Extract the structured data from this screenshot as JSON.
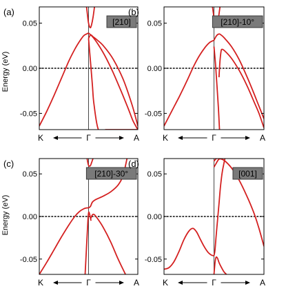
{
  "y_axis_label": "Energy (eV)",
  "chart_data": [
    {
      "type": "line",
      "panel_label": "(a)",
      "tag": "[210]",
      "x_ticks": [
        "K",
        "Γ",
        "A"
      ],
      "yticks": [
        "0.05",
        "0.00",
        "-0.05"
      ],
      "ylim": [
        -0.068,
        0.068
      ],
      "xlim": [
        -1,
        1
      ],
      "line_color": "#d42020",
      "series": [
        {
          "x": [
            -1.0,
            -0.85,
            -0.7,
            -0.55,
            -0.4,
            -0.28,
            -0.18,
            -0.1,
            -0.04,
            0.0
          ],
          "y": [
            -0.064,
            -0.048,
            -0.03,
            -0.011,
            0.008,
            0.021,
            0.03,
            0.036,
            0.038,
            0.039
          ]
        },
        {
          "x": [
            0.0,
            0.08,
            0.2,
            0.35,
            0.5,
            0.65,
            0.8,
            0.9,
            1.0
          ],
          "y": [
            0.039,
            0.035,
            0.026,
            0.012,
            -0.005,
            -0.024,
            -0.044,
            -0.058,
            -0.068
          ]
        },
        {
          "x": [
            0.0,
            0.02,
            0.05,
            0.08,
            0.11,
            0.2,
            0.35,
            0.5,
            0.65,
            0.8,
            0.9,
            1.0
          ],
          "y": [
            0.033,
            0.02,
            0.0,
            -0.02,
            -0.04,
            -0.068,
            -0.068,
            -0.068,
            -0.068,
            -0.068,
            -0.068,
            -0.068
          ]
        },
        {
          "x": [
            0.0,
            0.04,
            0.09,
            0.16,
            0.3,
            0.5,
            0.7,
            0.88,
            1.0
          ],
          "y": [
            0.033,
            0.037,
            0.035,
            0.032,
            0.025,
            0.01,
            -0.012,
            -0.04,
            -0.064
          ]
        },
        {
          "x": [
            -0.04,
            -0.02,
            0.0,
            0.02,
            0.04,
            0.06,
            0.09,
            0.12
          ],
          "y": [
            0.068,
            0.058,
            0.05,
            0.046,
            0.045,
            0.048,
            0.056,
            0.068
          ]
        }
      ]
    },
    {
      "type": "line",
      "panel_label": "(b)",
      "tag": "[210]-10°",
      "x_ticks": [
        "K",
        "Γ",
        "A"
      ],
      "yticks": [
        "0.05",
        "0.00",
        "-0.05"
      ],
      "ylim": [
        -0.068,
        0.068
      ],
      "xlim": [
        -1,
        1
      ],
      "line_color": "#d42020",
      "series": [
        {
          "x": [
            -1.0,
            -0.85,
            -0.7,
            -0.55,
            -0.4,
            -0.28,
            -0.18,
            -0.1,
            -0.04,
            0.0
          ],
          "y": [
            -0.064,
            -0.048,
            -0.032,
            -0.015,
            0.003,
            0.015,
            0.023,
            0.028,
            0.03,
            0.031
          ]
        },
        {
          "x": [
            0.0,
            0.05,
            0.1,
            0.14,
            0.2,
            0.35,
            0.5,
            0.65,
            0.8,
            0.9,
            1.0
          ],
          "y": [
            0.031,
            0.036,
            0.038,
            0.037,
            0.034,
            0.024,
            0.01,
            -0.008,
            -0.028,
            -0.042,
            -0.056
          ]
        },
        {
          "x": [
            0.0,
            0.03,
            0.06,
            0.09,
            0.11
          ],
          "y": [
            0.024,
            0.005,
            -0.02,
            -0.045,
            -0.068
          ]
        },
        {
          "x": [
            0.1,
            0.12,
            0.14,
            0.16,
            0.22,
            0.35,
            0.5,
            0.65,
            0.8,
            0.9,
            1.0
          ],
          "y": [
            -0.01,
            0.008,
            0.018,
            0.021,
            0.019,
            0.011,
            -0.002,
            -0.018,
            -0.037,
            -0.05,
            -0.066
          ]
        },
        {
          "x": [
            -0.03,
            -0.01,
            0.0,
            0.02,
            0.04,
            0.06,
            0.08,
            0.1,
            0.12
          ],
          "y": [
            0.068,
            0.06,
            0.055,
            0.05,
            0.048,
            0.049,
            0.053,
            0.06,
            0.068
          ]
        }
      ]
    },
    {
      "type": "line",
      "panel_label": "(c)",
      "tag": "[210]-30°",
      "x_ticks": [
        "K",
        "Γ",
        "A"
      ],
      "yticks": [
        "0.05",
        "0.00",
        "-0.05"
      ],
      "ylim": [
        -0.068,
        0.068
      ],
      "xlim": [
        -1,
        1
      ],
      "line_color": "#d42020",
      "series": [
        {
          "x": [
            -1.0,
            -0.85,
            -0.7,
            -0.55,
            -0.4,
            -0.28,
            -0.18,
            -0.1,
            -0.04,
            0.0
          ],
          "y": [
            -0.068,
            -0.054,
            -0.039,
            -0.024,
            -0.01,
            0.0,
            0.006,
            0.009,
            0.01,
            0.01
          ]
        },
        {
          "x": [
            0.0,
            0.04,
            0.08,
            0.15,
            0.3,
            0.45,
            0.6,
            0.7,
            0.78
          ],
          "y": [
            0.01,
            0.012,
            0.017,
            0.02,
            0.024,
            0.029,
            0.037,
            0.048,
            0.068
          ]
        },
        {
          "x": [
            -0.07,
            -0.04,
            -0.02,
            0.0,
            0.02,
            0.05
          ],
          "y": [
            -0.068,
            -0.035,
            -0.012,
            0.004,
            0.003,
            -0.005
          ]
        },
        {
          "x": [
            0.04,
            0.08,
            0.12,
            0.2,
            0.3,
            0.45,
            0.6,
            0.75
          ],
          "y": [
            -0.003,
            0.002,
            0.002,
            -0.004,
            -0.013,
            -0.03,
            -0.05,
            -0.068
          ]
        },
        {
          "x": [
            -0.03,
            -0.01,
            0.0,
            0.02,
            0.04,
            0.06,
            0.09
          ],
          "y": [
            0.068,
            0.062,
            0.06,
            0.059,
            0.06,
            0.063,
            0.068
          ]
        }
      ]
    },
    {
      "type": "line",
      "panel_label": "(d)",
      "tag": "[001]",
      "x_ticks": [
        "K",
        "Γ",
        "A"
      ],
      "yticks": [
        "0.05",
        "0.00",
        "-0.05"
      ],
      "ylim": [
        -0.068,
        0.068
      ],
      "xlim": [
        -1,
        1
      ],
      "line_color": "#d42020",
      "series": [
        {
          "x": [
            -1.0,
            -0.9,
            -0.8,
            -0.7,
            -0.6,
            -0.5,
            -0.42,
            -0.35,
            -0.28,
            -0.2,
            -0.12,
            -0.06,
            -0.02,
            0.0
          ],
          "y": [
            -0.062,
            -0.06,
            -0.053,
            -0.041,
            -0.027,
            -0.017,
            -0.014,
            -0.018,
            -0.026,
            -0.035,
            -0.042,
            -0.045,
            -0.046,
            -0.046
          ]
        },
        {
          "x": [
            0.0,
            0.02,
            0.04,
            0.07,
            0.1,
            0.13,
            0.16,
            0.19,
            0.22
          ],
          "y": [
            -0.046,
            -0.04,
            -0.025,
            -0.005,
            0.015,
            0.035,
            0.05,
            0.06,
            0.068
          ]
        },
        {
          "x": [
            0.0,
            0.02,
            0.04,
            0.07,
            0.1,
            0.15,
            0.2,
            0.25
          ],
          "y": [
            -0.068,
            -0.055,
            -0.048,
            -0.049,
            -0.054,
            -0.06,
            -0.065,
            -0.068
          ]
        },
        {
          "x": [
            0.0,
            0.05,
            0.1,
            0.2,
            0.35,
            0.5,
            0.65,
            0.8,
            0.9,
            1.0
          ],
          "y": [
            0.065,
            0.068,
            0.068,
            0.066,
            0.057,
            0.043,
            0.025,
            0.004,
            -0.014,
            -0.035
          ]
        },
        {
          "x": [
            0.0,
            0.04,
            0.08,
            0.12,
            0.16
          ],
          "y": [
            0.058,
            0.062,
            0.066,
            0.068,
            0.068
          ]
        }
      ]
    }
  ]
}
